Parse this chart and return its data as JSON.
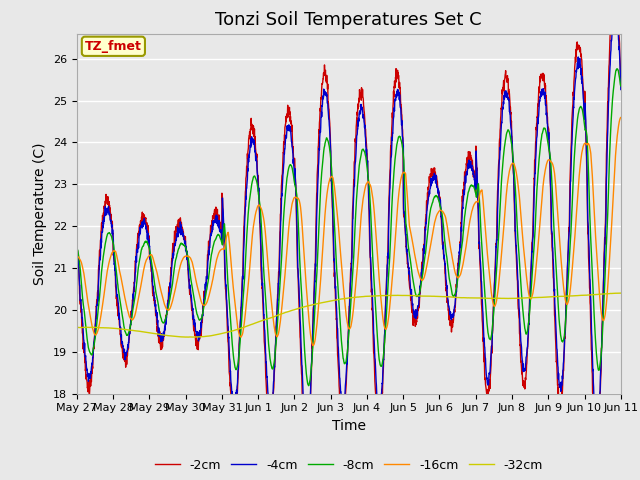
{
  "title": "Tonzi Soil Temperatures Set C",
  "xlabel": "Time",
  "ylabel": "Soil Temperature (C)",
  "annotation": "TZ_fmet",
  "ylim": [
    18.0,
    26.6
  ],
  "yticks": [
    18.0,
    19.0,
    20.0,
    21.0,
    22.0,
    23.0,
    24.0,
    25.0,
    26.0
  ],
  "xtick_labels": [
    "May 27",
    "May 28",
    "May 29",
    "May 30",
    "May 31",
    "Jun 1",
    "Jun 2",
    "Jun 3",
    "Jun 4",
    "Jun 5",
    "Jun 6",
    "Jun 7",
    "Jun 8",
    "Jun 9",
    "Jun 10",
    "Jun 11"
  ],
  "line_colors": {
    "-2cm": "#cc0000",
    "-4cm": "#0000cc",
    "-8cm": "#00aa00",
    "-16cm": "#ff8800",
    "-32cm": "#cccc00"
  },
  "line_labels": [
    "-2cm",
    "-4cm",
    "-8cm",
    "-16cm",
    "-32cm"
  ],
  "background_color": "#e8e8e8",
  "title_fontsize": 13,
  "axis_label_fontsize": 10,
  "tick_fontsize": 8,
  "annotation_bg": "#ffffcc",
  "annotation_border": "#999900",
  "legend_fontsize": 9
}
